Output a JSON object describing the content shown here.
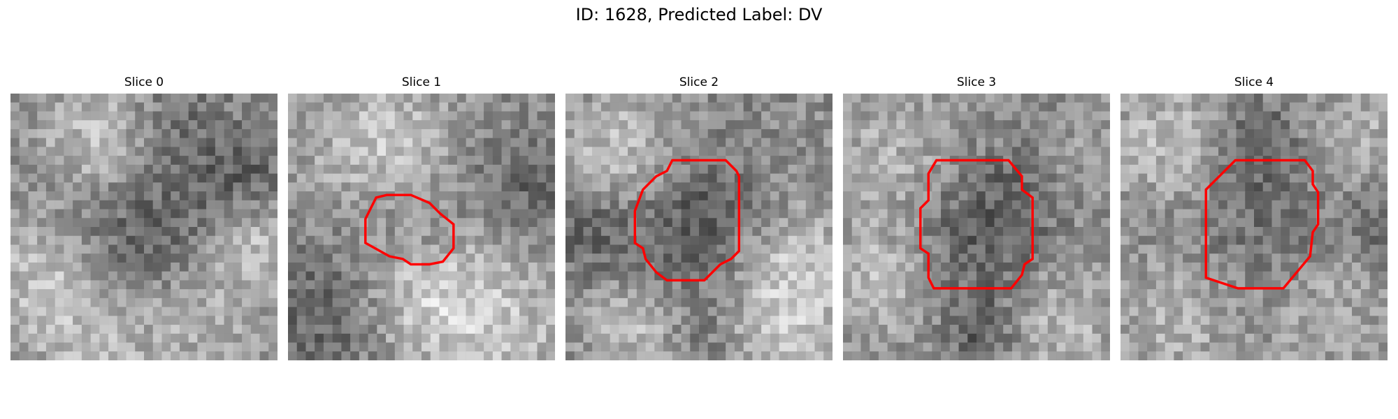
{
  "figure": {
    "title": "ID: 1628, Predicted Label: DV",
    "contour_color": "#ff0000"
  },
  "panels": [
    {
      "title": "Slice 0",
      "has_contour": false
    },
    {
      "title": "Slice 1",
      "has_contour": true
    },
    {
      "title": "Slice 2",
      "has_contour": true
    },
    {
      "title": "Slice 3",
      "has_contour": true
    },
    {
      "title": "Slice 4",
      "has_contour": true
    }
  ]
}
